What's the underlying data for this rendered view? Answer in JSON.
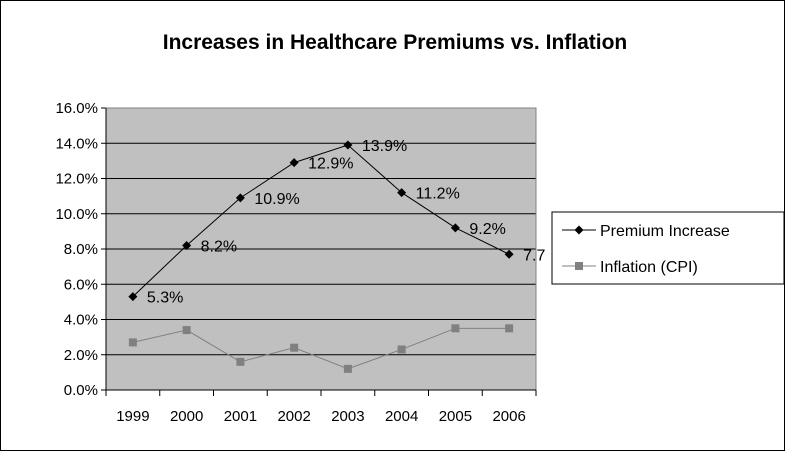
{
  "chart_data": {
    "type": "line",
    "title": "Increases in Healthcare Premiums vs. Inflation",
    "xlabel": "",
    "ylabel": "",
    "categories": [
      "1999",
      "2000",
      "2001",
      "2002",
      "2003",
      "2004",
      "2005",
      "2006"
    ],
    "ylim": [
      0,
      16
    ],
    "yticks": [
      "0.0%",
      "2.0%",
      "4.0%",
      "6.0%",
      "8.0%",
      "10.0%",
      "12.0%",
      "14.0%",
      "16.0%"
    ],
    "grid": true,
    "legend_position": "right",
    "plot_background": "#c0c0c0",
    "series": [
      {
        "name": "Premium Increase",
        "values": [
          5.3,
          8.2,
          10.9,
          12.9,
          13.9,
          11.2,
          9.2,
          7.7
        ],
        "data_labels": [
          "5.3%",
          "8.2%",
          "10.9%",
          "12.9%",
          "13.9%",
          "11.2%",
          "9.2%",
          "7.7"
        ],
        "color": "#000000",
        "marker": "diamond"
      },
      {
        "name": "Inflation (CPI)",
        "values": [
          2.7,
          3.4,
          1.6,
          2.4,
          1.2,
          2.3,
          3.5,
          3.5
        ],
        "color": "#808080",
        "marker": "square"
      }
    ]
  }
}
